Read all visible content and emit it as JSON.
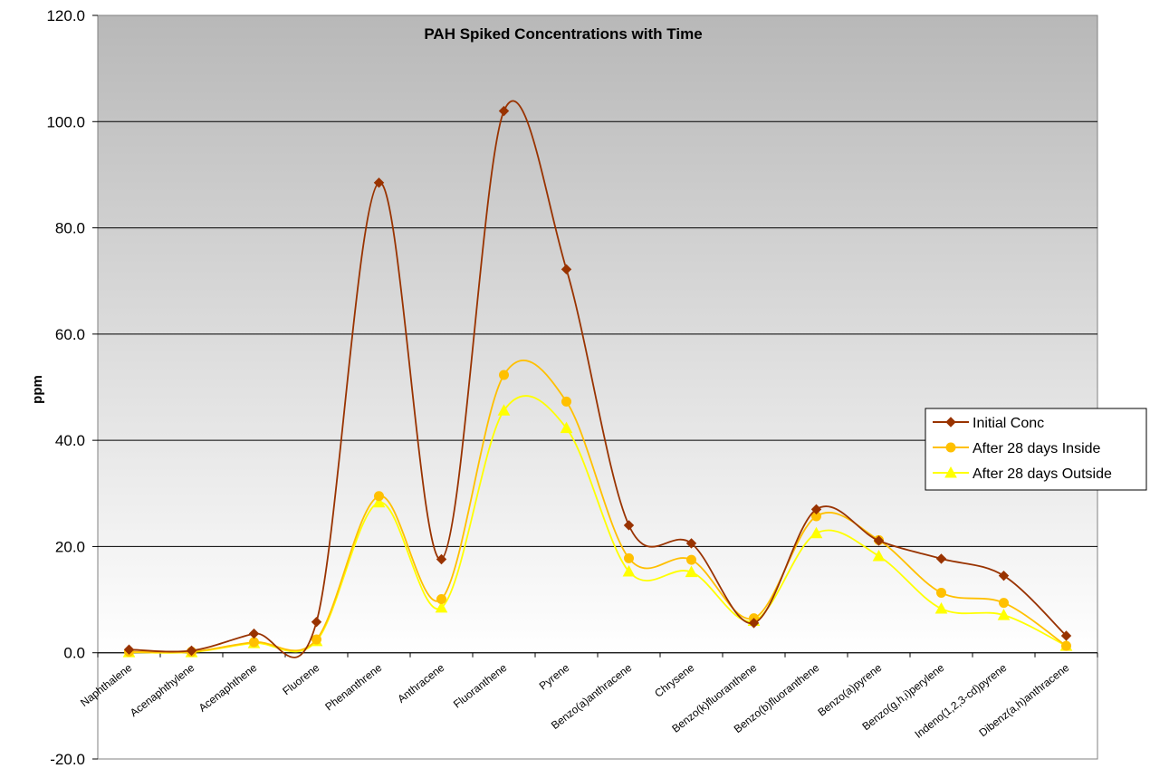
{
  "chart_data": {
    "type": "line",
    "title": "PAH Spiked Concentrations with Time",
    "xlabel": "",
    "ylabel": "ppm",
    "ylim": [
      -20,
      120
    ],
    "ytick_step": 20,
    "grid": true,
    "smooth": true,
    "legend_position": "right",
    "background": "gradient grey-to-white",
    "categories": [
      "Naphthalene",
      "Acenaphthylene",
      "Acenaphthene",
      "Fluorene",
      "Phenanthrene",
      "Anthracene",
      "Fluoranthene",
      "Pyrene",
      "Benzo(a)anthracene",
      "Chrysene",
      "Benzo(k)fluoranthene",
      "Benzo(b)fluoranthene",
      "Benzo(a)pyrene",
      "Benzo(g,h,i)perylene",
      "Indeno(1,2,3-cd)pyrene",
      "Dibenz(a,h)anthracene"
    ],
    "series": [
      {
        "name": "Initial Conc",
        "color": "#993300",
        "marker": "diamond",
        "values": [
          0.6,
          0.4,
          3.6,
          5.8,
          88.5,
          17.6,
          102.0,
          72.2,
          24.0,
          20.6,
          5.6,
          27.0,
          21.1,
          17.7,
          14.5,
          3.2
        ]
      },
      {
        "name": "After 28 days Inside",
        "color": "#FFC000",
        "marker": "circle",
        "values": [
          0.2,
          0.2,
          2.0,
          2.5,
          29.5,
          10.1,
          52.3,
          47.3,
          17.8,
          17.5,
          6.5,
          25.7,
          21.2,
          11.3,
          9.4,
          1.3
        ]
      },
      {
        "name": "After 28 days Outside",
        "color": "#FFFF00",
        "marker": "triangle",
        "values": [
          0.1,
          0.1,
          1.8,
          2.2,
          28.3,
          8.5,
          45.6,
          42.3,
          15.3,
          15.2,
          6.0,
          22.5,
          18.2,
          8.3,
          7.1,
          1.3
        ]
      }
    ]
  }
}
